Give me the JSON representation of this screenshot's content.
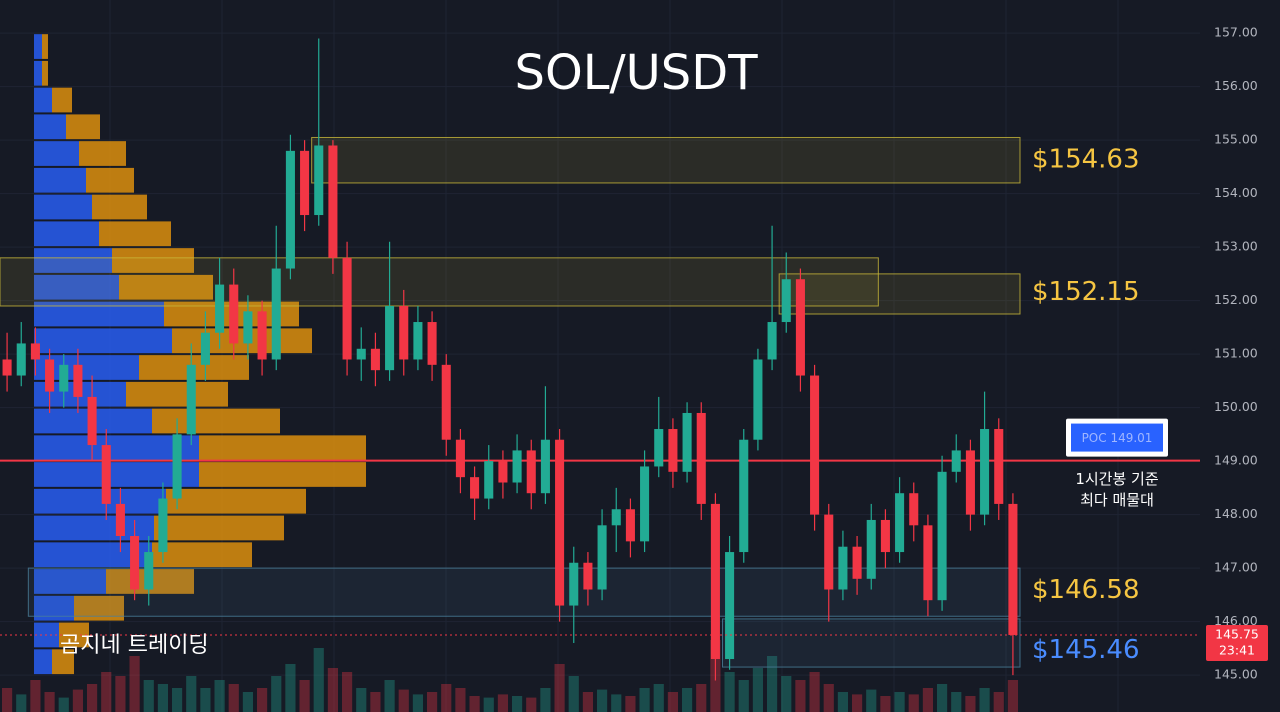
{
  "chart_data": {
    "type": "candlestick",
    "title": "SOL/USDT",
    "ylim": [
      144.31,
      157.62
    ],
    "yticks": [
      {
        "value": 145,
        "label": "145.00"
      },
      {
        "value": 146,
        "label": "146.00"
      },
      {
        "value": 147,
        "label": "147.00"
      },
      {
        "value": 148,
        "label": "148.00"
      },
      {
        "value": 149,
        "label": "149.00"
      },
      {
        "value": 150,
        "label": "150.00"
      },
      {
        "value": 151,
        "label": "151.00"
      },
      {
        "value": 152,
        "label": "152.00"
      },
      {
        "value": 153,
        "label": "153.00"
      },
      {
        "value": 154,
        "label": "154.00"
      },
      {
        "value": 155,
        "label": "155.00"
      },
      {
        "value": 156,
        "label": "156.00"
      },
      {
        "value": 157,
        "label": "157.00"
      }
    ],
    "grid": true,
    "up_color": "#22ab94",
    "down_color": "#f23645",
    "open": [
      150.9,
      150.6,
      151.2,
      150.9,
      150.3,
      150.8,
      150.2,
      149.3,
      148.2,
      147.6,
      146.6,
      147.3,
      148.3,
      149.5,
      150.8,
      151.4,
      152.3,
      151.2,
      151.8,
      150.9,
      152.6,
      154.8,
      153.6,
      154.9,
      152.8,
      150.9,
      151.1,
      150.7,
      151.9,
      150.9,
      151.6,
      150.8,
      149.4,
      148.7,
      148.3,
      149.0,
      148.6,
      149.2,
      148.4,
      149.4,
      146.3,
      147.1,
      146.6,
      147.8,
      148.1,
      147.5,
      148.9,
      149.6,
      148.8,
      149.9,
      148.2,
      145.3,
      147.3,
      149.4,
      150.9,
      151.6,
      152.4,
      150.6,
      148.0,
      146.6,
      147.4,
      146.8,
      147.9,
      147.3,
      148.4,
      147.8,
      146.4,
      148.8,
      149.2,
      148.0,
      149.6,
      148.2
    ],
    "high": [
      151.4,
      151.6,
      151.5,
      151.1,
      151.0,
      151.1,
      150.6,
      149.6,
      148.5,
      147.9,
      147.6,
      148.6,
      149.8,
      151.2,
      151.8,
      152.8,
      152.6,
      152.1,
      152.0,
      153.4,
      155.1,
      155.0,
      156.9,
      155.0,
      153.1,
      151.5,
      151.4,
      153.1,
      152.2,
      151.9,
      151.8,
      151.0,
      149.6,
      148.9,
      149.3,
      149.2,
      149.5,
      149.4,
      150.4,
      149.6,
      147.4,
      147.3,
      148.1,
      148.5,
      148.3,
      149.2,
      150.2,
      149.8,
      150.1,
      150.1,
      148.4,
      147.6,
      149.6,
      151.1,
      153.4,
      152.9,
      152.6,
      150.8,
      148.2,
      147.7,
      147.6,
      148.2,
      148.1,
      148.7,
      148.6,
      148.0,
      149.1,
      149.5,
      149.4,
      150.3,
      149.8,
      148.4
    ],
    "low": [
      150.3,
      150.4,
      150.6,
      149.9,
      150.0,
      149.9,
      149.0,
      147.9,
      147.3,
      146.4,
      146.3,
      147.1,
      148.1,
      149.3,
      150.5,
      151.1,
      150.9,
      150.9,
      150.6,
      150.7,
      152.4,
      153.3,
      153.4,
      152.5,
      150.6,
      150.5,
      150.4,
      150.5,
      150.6,
      150.7,
      150.5,
      149.1,
      148.4,
      147.9,
      148.1,
      148.3,
      148.4,
      148.1,
      148.2,
      146.0,
      145.6,
      146.3,
      146.4,
      147.3,
      147.2,
      147.3,
      148.7,
      148.5,
      148.6,
      147.9,
      144.9,
      145.1,
      147.1,
      149.2,
      150.7,
      151.4,
      150.3,
      147.7,
      146.0,
      146.4,
      146.5,
      146.6,
      147.0,
      147.1,
      147.5,
      146.1,
      146.2,
      148.6,
      147.7,
      147.8,
      147.9,
      145.0
    ],
    "close": [
      150.6,
      151.2,
      150.9,
      150.3,
      150.8,
      150.2,
      149.3,
      148.2,
      147.6,
      146.6,
      147.3,
      148.3,
      149.5,
      150.8,
      151.4,
      152.3,
      151.2,
      151.8,
      150.9,
      152.6,
      154.8,
      153.6,
      154.9,
      152.8,
      150.9,
      151.1,
      150.7,
      151.9,
      150.9,
      151.6,
      150.8,
      149.4,
      148.7,
      148.3,
      149.0,
      148.6,
      149.2,
      148.4,
      149.4,
      146.3,
      147.1,
      146.6,
      147.8,
      148.1,
      147.5,
      148.9,
      149.6,
      148.8,
      149.9,
      148.2,
      145.3,
      147.3,
      149.4,
      150.9,
      151.6,
      152.4,
      150.6,
      148.0,
      146.6,
      147.4,
      146.8,
      147.9,
      147.3,
      148.4,
      147.8,
      146.4,
      148.8,
      149.2,
      148.0,
      149.6,
      148.2,
      145.75
    ],
    "volume": [
      30,
      22,
      40,
      25,
      18,
      28,
      35,
      50,
      45,
      70,
      40,
      35,
      30,
      45,
      30,
      40,
      35,
      25,
      30,
      45,
      60,
      40,
      80,
      55,
      50,
      30,
      25,
      40,
      28,
      22,
      25,
      35,
      30,
      20,
      18,
      22,
      20,
      18,
      30,
      60,
      45,
      25,
      28,
      22,
      20,
      30,
      35,
      25,
      30,
      35,
      90,
      50,
      40,
      55,
      70,
      45,
      40,
      50,
      35,
      25,
      22,
      28,
      20,
      25,
      22,
      30,
      35,
      25,
      20,
      30,
      25,
      40
    ],
    "volume_profile": {
      "prices": [
        156.75,
        156.25,
        155.75,
        155.25,
        154.75,
        154.25,
        153.75,
        153.25,
        152.75,
        152.25,
        151.75,
        151.25,
        150.75,
        150.25,
        149.75,
        149.25,
        148.75,
        148.25,
        147.75,
        147.25,
        146.75,
        146.25,
        145.75,
        145.25
      ],
      "up": [
        8,
        8,
        18,
        32,
        45,
        52,
        58,
        65,
        78,
        85,
        130,
        138,
        105,
        92,
        118,
        165,
        165,
        132,
        120,
        118,
        72,
        40,
        25,
        18
      ],
      "down": [
        6,
        6,
        20,
        34,
        47,
        48,
        55,
        72,
        82,
        94,
        135,
        140,
        110,
        102,
        128,
        167,
        167,
        140,
        130,
        100,
        88,
        50,
        30,
        22
      ],
      "up_color": "#2962ff",
      "down_color": "#e8960c"
    },
    "zones": [
      {
        "top": 155.05,
        "bottom": 154.2,
        "from": 22,
        "to": 72,
        "color": "#c9b83a"
      },
      {
        "top": 152.8,
        "bottom": 151.9,
        "from": 0,
        "to": 62,
        "color": "#c9b83a"
      },
      {
        "top": 152.5,
        "bottom": 151.75,
        "from": 55,
        "to": 72,
        "color": "#c9b83a"
      },
      {
        "top": 147.0,
        "bottom": 146.1,
        "from": 2,
        "to": 72,
        "color": "#4a7f9a"
      },
      {
        "top": 146.05,
        "bottom": 145.15,
        "from": 51,
        "to": 72,
        "color": "#4a7f9a"
      }
    ],
    "level_labels": [
      {
        "value": 154.63,
        "label": "$154.63",
        "color": "#f5c542"
      },
      {
        "value": 152.15,
        "label": "$152.15",
        "color": "#f5c542"
      },
      {
        "value": 146.58,
        "label": "$146.58",
        "color": "#f5c542"
      },
      {
        "value": 145.46,
        "label": "$145.46",
        "color": "#4a8cff"
      }
    ],
    "poc": {
      "value": 149.01,
      "label": "POC  149.01",
      "color": "#f23645"
    },
    "poc_note": [
      "1시간봉 기준",
      "최다 매물대"
    ],
    "watermark": "곰지네 트레이딩",
    "last_price": {
      "value": 145.75,
      "countdown": "23:41"
    }
  }
}
